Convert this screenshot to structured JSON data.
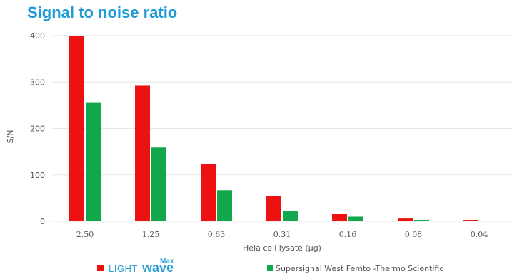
{
  "title": "Signal to noise ratio",
  "colors": {
    "lightwave": "#ee1111",
    "supersignal": "#11a84b",
    "brand": "#2f9fd8",
    "grid": "#e6e6e6",
    "text": "#555555"
  },
  "legend": {
    "brand_main": "LIGHT",
    "brand_wave": "wave",
    "brand_super": "Max",
    "competitor": "Supersignal West Femto -Thermo Scientific"
  },
  "chart_data": {
    "type": "bar",
    "title": "Signal to noise ratio",
    "xlabel": "Hela cell lysate (µg)",
    "ylabel": "S/N",
    "categories": [
      "2.50",
      "1.25",
      "0.63",
      "0.31",
      "0.16",
      "0.08",
      "0.04"
    ],
    "ylim": [
      0,
      400
    ],
    "yticks": [
      0,
      100,
      200,
      300,
      400
    ],
    "grid": true,
    "legend_position": "bottom",
    "series": [
      {
        "name": "LIGHTwave Max",
        "values": [
          400,
          292,
          124,
          55,
          16,
          6,
          3
        ]
      },
      {
        "name": "Supersignal West Femto -Thermo Scientific",
        "values": [
          255,
          159,
          67,
          23,
          10,
          3,
          0
        ]
      }
    ]
  }
}
